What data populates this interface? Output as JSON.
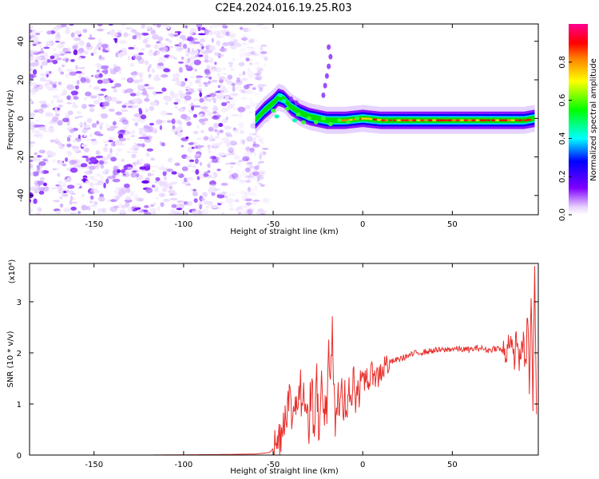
{
  "title": "C2E4.2024.016.19.25.R03",
  "chart_data": [
    {
      "type": "heatmap",
      "xlabel": "Height of straight line (km)",
      "ylabel": "Frequency (Hz)",
      "xlim": [
        -186,
        98
      ],
      "ylim": [
        -50,
        49
      ],
      "xticks": [
        -150,
        -100,
        -50,
        0,
        50
      ],
      "yticks": [
        -40,
        -20,
        0,
        20,
        40
      ],
      "noise_region_x": [
        -186,
        -60
      ],
      "signal_band": [
        [
          -60,
          -1
        ],
        [
          -55,
          4
        ],
        [
          -50,
          8
        ],
        [
          -47,
          11
        ],
        [
          -44,
          10
        ],
        [
          -40,
          6
        ],
        [
          -35,
          3
        ],
        [
          -30,
          1
        ],
        [
          -25,
          0
        ],
        [
          -20,
          -1
        ],
        [
          -10,
          -1
        ],
        [
          0,
          0
        ],
        [
          10,
          -1
        ],
        [
          30,
          -1
        ],
        [
          60,
          -1
        ],
        [
          90,
          -1
        ],
        [
          96,
          0
        ]
      ],
      "colorbar": {
        "label": "Normalized spectral amplitude",
        "range": [
          0,
          1
        ],
        "ticks": [
          0.0,
          0.2,
          0.4,
          0.6,
          0.8
        ],
        "colors": [
          "#ffffff",
          "#7f00ff",
          "#0000ff",
          "#00ffff",
          "#00ff00",
          "#ffff00",
          "#ff8000",
          "#ff0000",
          "#ff0090"
        ]
      }
    },
    {
      "type": "line",
      "xlabel": "Height of straight line (km)",
      "ylabel": "SNR (10 * v/v)",
      "scale_label": "(x10⁴)",
      "xlim": [
        -186,
        98
      ],
      "ylim": [
        0,
        3.75
      ],
      "xticks": [
        -150,
        -100,
        -50,
        0,
        50
      ],
      "yticks": [
        0,
        1,
        2,
        3
      ],
      "color": "#e8302c",
      "series": [
        {
          "x": [
            -186,
            -160,
            -120,
            -80,
            -60,
            -52,
            -48,
            -45,
            -43,
            -41,
            -39,
            -37,
            -36,
            -35,
            -34,
            -33,
            -32,
            -31,
            -30,
            -29,
            -28,
            -27,
            -26,
            -25,
            -24,
            -23,
            -22,
            -21,
            -20,
            -19,
            -18,
            -17,
            -16,
            -15,
            -14,
            -13,
            -12,
            -11,
            -10,
            -9,
            -8,
            -7,
            -6,
            -5,
            -4,
            -3,
            -2,
            -1,
            0,
            2,
            4,
            6,
            8,
            10,
            14,
            18,
            22,
            26,
            30,
            35,
            40,
            45,
            50,
            55,
            60,
            65,
            70,
            75,
            80,
            82,
            84,
            86,
            88,
            89,
            90,
            91,
            92,
            93,
            94,
            95,
            96,
            97
          ],
          "y": [
            0.0,
            0.0,
            0.0,
            0.01,
            0.02,
            0.05,
            0.2,
            0.55,
            0.9,
            1.1,
            0.7,
            1.3,
            0.8,
            1.6,
            0.6,
            1.7,
            0.9,
            1.2,
            0.5,
            1.3,
            1.0,
            0.6,
            1.8,
            0.9,
            0.4,
            1.5,
            0.8,
            1.1,
            0.6,
            2.0,
            1.2,
            2.6,
            1.0,
            0.4,
            1.2,
            0.7,
            1.8,
            0.9,
            1.2,
            0.6,
            1.4,
            1.0,
            1.2,
            1.6,
            1.1,
            1.4,
            1.2,
            1.5,
            1.3,
            1.6,
            1.4,
            1.7,
            1.5,
            1.65,
            1.8,
            1.85,
            1.9,
            1.95,
            2.0,
            2.02,
            2.05,
            2.05,
            2.08,
            2.07,
            2.06,
            2.1,
            2.05,
            2.1,
            2.0,
            2.35,
            1.8,
            2.3,
            1.7,
            2.4,
            2.0,
            1.6,
            2.9,
            1.3,
            3.05,
            1.0,
            3.65,
            0.8
          ]
        }
      ]
    }
  ]
}
